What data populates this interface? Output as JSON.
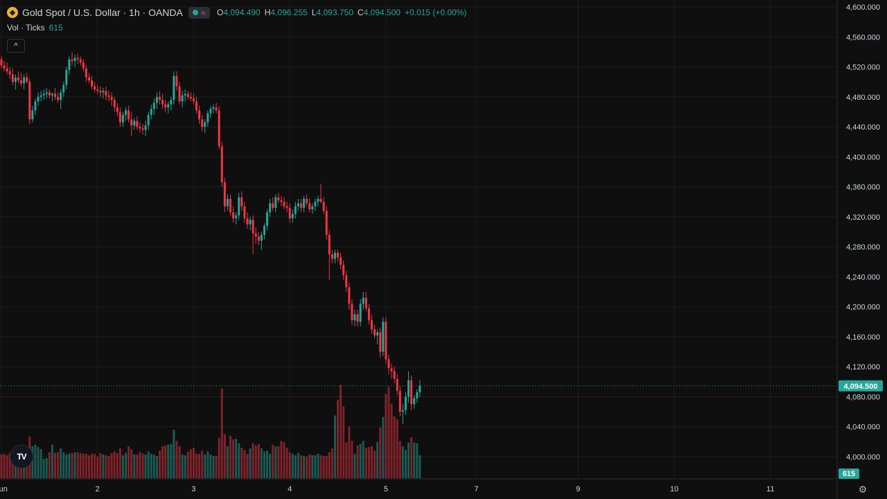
{
  "header": {
    "title": "Gold Spot / U.S. Dollar · 1h · OANDA",
    "o_label": "O",
    "o_value": "4,094.490",
    "h_label": "H",
    "h_value": "4,096.255",
    "l_label": "L",
    "l_value": "4,093.750",
    "c_label": "C",
    "c_value": "4,094.500",
    "change": "+0.015 (+0.00%)"
  },
  "volume_legend": {
    "label": "Vol · Ticks",
    "value": "615"
  },
  "colors": {
    "up": "#26a69a",
    "down": "#f23645",
    "background": "#0f0f0f",
    "grid": "#1e1e1e",
    "text": "#d1d4dc"
  },
  "icons": {
    "symbol": "gold-coin-icon",
    "collapse": "chevron-up-icon",
    "brand": "tradingview-logo-icon",
    "settings": "gear-icon"
  },
  "chart_data": {
    "type": "candlestick",
    "interval": "1h",
    "price_axis": {
      "range": [
        3980,
        4605
      ],
      "ticks": [
        4000,
        4040,
        4080,
        4120,
        4160,
        4200,
        4240,
        4280,
        4320,
        4360,
        4400,
        4440,
        4480,
        4520,
        4560,
        4600
      ],
      "tick_labels": [
        "4,000.000",
        "4,040.000",
        "4,080.000",
        "4,120.000",
        "4,160.000",
        "4,200.000",
        "4,240.000",
        "4,280.000",
        "4,320.000",
        "4,360.000",
        "4,400.000",
        "4,440.000",
        "4,480.000",
        "4,520.000",
        "4,560.000",
        "4,600.000"
      ]
    },
    "time_axis": {
      "labels": [
        "Jun",
        "2",
        "3",
        "4",
        "5",
        "7",
        "9",
        "10",
        "11"
      ],
      "label_index": [
        0,
        34,
        68,
        102,
        136,
        168,
        204,
        238,
        272
      ]
    },
    "last_price": 4094.5,
    "last_price_label": "4,094.500",
    "last_volume_label": "615",
    "candles": [
      [
        4530,
        4534,
        4518,
        4522
      ],
      [
        4522,
        4528,
        4514,
        4518
      ],
      [
        4518,
        4526,
        4510,
        4514
      ],
      [
        4514,
        4520,
        4504,
        4510
      ],
      [
        4510,
        4518,
        4496,
        4500
      ],
      [
        4500,
        4510,
        4490,
        4506
      ],
      [
        4506,
        4514,
        4498,
        4502
      ],
      [
        4502,
        4512,
        4494,
        4498
      ],
      [
        4498,
        4510,
        4490,
        4506
      ],
      [
        4506,
        4512,
        4498,
        4500
      ],
      [
        4500,
        4504,
        4444,
        4450
      ],
      [
        4450,
        4468,
        4446,
        4462
      ],
      [
        4462,
        4478,
        4456,
        4474
      ],
      [
        4474,
        4486,
        4468,
        4480
      ],
      [
        4480,
        4488,
        4474,
        4482
      ],
      [
        4482,
        4490,
        4476,
        4484
      ],
      [
        4484,
        4492,
        4478,
        4486
      ],
      [
        4486,
        4490,
        4478,
        4482
      ],
      [
        4482,
        4486,
        4474,
        4484
      ],
      [
        4484,
        4492,
        4476,
        4480
      ],
      [
        4480,
        4486,
        4472,
        4476
      ],
      [
        4476,
        4490,
        4464,
        4486
      ],
      [
        4486,
        4500,
        4480,
        4496
      ],
      [
        4496,
        4520,
        4490,
        4516
      ],
      [
        4516,
        4534,
        4510,
        4530
      ],
      [
        4530,
        4540,
        4522,
        4528
      ],
      [
        4528,
        4536,
        4520,
        4532
      ],
      [
        4532,
        4538,
        4524,
        4530
      ],
      [
        4530,
        4534,
        4522,
        4526
      ],
      [
        4526,
        4530,
        4514,
        4518
      ],
      [
        4518,
        4522,
        4500,
        4506
      ],
      [
        4506,
        4512,
        4498,
        4502
      ],
      [
        4502,
        4508,
        4490,
        4494
      ],
      [
        4494,
        4500,
        4486,
        4490
      ],
      [
        4490,
        4496,
        4484,
        4488
      ],
      [
        4488,
        4494,
        4480,
        4486
      ],
      [
        4486,
        4492,
        4478,
        4488
      ],
      [
        4488,
        4494,
        4476,
        4482
      ],
      [
        4482,
        4488,
        4474,
        4480
      ],
      [
        4480,
        4486,
        4468,
        4476
      ],
      [
        4476,
        4480,
        4460,
        4466
      ],
      [
        4466,
        4472,
        4454,
        4460
      ],
      [
        4460,
        4466,
        4440,
        4446
      ],
      [
        4446,
        4460,
        4440,
        4456
      ],
      [
        4456,
        4466,
        4448,
        4462
      ],
      [
        4462,
        4468,
        4446,
        4450
      ],
      [
        4450,
        4460,
        4428,
        4442
      ],
      [
        4442,
        4452,
        4436,
        4448
      ],
      [
        4448,
        4454,
        4436,
        4440
      ],
      [
        4440,
        4446,
        4432,
        4438
      ],
      [
        4438,
        4444,
        4430,
        4436
      ],
      [
        4436,
        4448,
        4428,
        4442
      ],
      [
        4442,
        4460,
        4436,
        4456
      ],
      [
        4456,
        4470,
        4450,
        4464
      ],
      [
        4464,
        4478,
        4456,
        4472
      ],
      [
        4472,
        4486,
        4464,
        4480
      ],
      [
        4480,
        4488,
        4470,
        4476
      ],
      [
        4476,
        4484,
        4464,
        4470
      ],
      [
        4470,
        4476,
        4460,
        4466
      ],
      [
        4466,
        4474,
        4458,
        4470
      ],
      [
        4470,
        4480,
        4462,
        4476
      ],
      [
        4476,
        4514,
        4470,
        4508
      ],
      [
        4508,
        4514,
        4488,
        4494
      ],
      [
        4494,
        4500,
        4470,
        4474
      ],
      [
        4474,
        4488,
        4466,
        4482
      ],
      [
        4482,
        4490,
        4474,
        4484
      ],
      [
        4484,
        4488,
        4476,
        4480
      ],
      [
        4480,
        4486,
        4474,
        4478
      ],
      [
        4478,
        4484,
        4470,
        4474
      ],
      [
        4474,
        4480,
        4458,
        4462
      ],
      [
        4462,
        4468,
        4444,
        4450
      ],
      [
        4450,
        4456,
        4434,
        4440
      ],
      [
        4440,
        4450,
        4432,
        4446
      ],
      [
        4446,
        4462,
        4440,
        4458
      ],
      [
        4458,
        4468,
        4452,
        4464
      ],
      [
        4464,
        4470,
        4458,
        4466
      ],
      [
        4466,
        4472,
        4458,
        4462
      ],
      [
        4462,
        4468,
        4410,
        4414
      ],
      [
        4414,
        4420,
        4360,
        4366
      ],
      [
        4366,
        4372,
        4326,
        4334
      ],
      [
        4334,
        4350,
        4328,
        4344
      ],
      [
        4344,
        4350,
        4322,
        4326
      ],
      [
        4326,
        4334,
        4312,
        4318
      ],
      [
        4318,
        4326,
        4310,
        4322
      ],
      [
        4322,
        4352,
        4316,
        4346
      ],
      [
        4346,
        4354,
        4328,
        4334
      ],
      [
        4334,
        4340,
        4312,
        4318
      ],
      [
        4318,
        4326,
        4304,
        4310
      ],
      [
        4310,
        4320,
        4302,
        4316
      ],
      [
        4316,
        4322,
        4270,
        4298
      ],
      [
        4298,
        4306,
        4284,
        4294
      ],
      [
        4294,
        4300,
        4282,
        4288
      ],
      [
        4288,
        4300,
        4276,
        4296
      ],
      [
        4296,
        4312,
        4290,
        4308
      ],
      [
        4308,
        4330,
        4302,
        4326
      ],
      [
        4326,
        4344,
        4320,
        4338
      ],
      [
        4338,
        4346,
        4328,
        4332
      ],
      [
        4332,
        4350,
        4326,
        4346
      ],
      [
        4346,
        4352,
        4338,
        4342
      ],
      [
        4342,
        4348,
        4334,
        4340
      ],
      [
        4340,
        4346,
        4330,
        4334
      ],
      [
        4334,
        4340,
        4326,
        4332
      ],
      [
        4332,
        4338,
        4312,
        4318
      ],
      [
        4318,
        4330,
        4312,
        4324
      ],
      [
        4324,
        4340,
        4318,
        4334
      ],
      [
        4334,
        4344,
        4328,
        4338
      ],
      [
        4338,
        4344,
        4326,
        4332
      ],
      [
        4332,
        4348,
        4326,
        4344
      ],
      [
        4344,
        4350,
        4334,
        4338
      ],
      [
        4338,
        4344,
        4326,
        4330
      ],
      [
        4330,
        4338,
        4324,
        4334
      ],
      [
        4334,
        4344,
        4328,
        4340
      ],
      [
        4340,
        4348,
        4334,
        4344
      ],
      [
        4344,
        4364,
        4338,
        4340
      ],
      [
        4340,
        4346,
        4324,
        4328
      ],
      [
        4328,
        4334,
        4290,
        4296
      ],
      [
        4296,
        4302,
        4236,
        4270
      ],
      [
        4270,
        4276,
        4258,
        4264
      ],
      [
        4264,
        4276,
        4258,
        4272
      ],
      [
        4272,
        4276,
        4260,
        4266
      ],
      [
        4266,
        4272,
        4250,
        4256
      ],
      [
        4256,
        4262,
        4236,
        4242
      ],
      [
        4242,
        4248,
        4220,
        4226
      ],
      [
        4226,
        4232,
        4196,
        4204
      ],
      [
        4204,
        4210,
        4176,
        4182
      ],
      [
        4182,
        4196,
        4174,
        4190
      ],
      [
        4190,
        4196,
        4174,
        4180
      ],
      [
        4180,
        4210,
        4174,
        4204
      ],
      [
        4204,
        4220,
        4196,
        4212
      ],
      [
        4212,
        4220,
        4194,
        4198
      ],
      [
        4198,
        4204,
        4176,
        4182
      ],
      [
        4182,
        4190,
        4164,
        4170
      ],
      [
        4170,
        4176,
        4158,
        4162
      ],
      [
        4162,
        4170,
        4150,
        4166
      ],
      [
        4166,
        4172,
        4132,
        4140
      ],
      [
        4140,
        4186,
        4134,
        4180
      ],
      [
        4180,
        4186,
        4124,
        4130
      ],
      [
        4130,
        4136,
        4110,
        4118
      ],
      [
        4118,
        4124,
        4104,
        4114
      ],
      [
        4114,
        4120,
        4098,
        4104
      ],
      [
        4104,
        4110,
        4082,
        4088
      ],
      [
        4088,
        4094,
        4054,
        4060
      ],
      [
        4060,
        4070,
        4044,
        4062
      ],
      [
        4062,
        4086,
        4056,
        4080
      ],
      [
        4080,
        4114,
        4072,
        4102
      ],
      [
        4102,
        4108,
        4062,
        4070
      ],
      [
        4070,
        4082,
        4064,
        4078
      ],
      [
        4078,
        4090,
        4072,
        4086
      ],
      [
        4086,
        4102,
        4080,
        4094.49
      ]
    ],
    "volumes": [
      4003,
      4004,
      4002,
      4005,
      4005,
      4006,
      4003,
      4005,
      4003,
      4004,
      4027,
      4014,
      4016,
      4013,
      4010,
      3997,
      3998,
      4006,
      4016,
      4005,
      4006,
      4011,
      4006,
      4003,
      4004,
      4005,
      4006,
      4006,
      4005,
      4004,
      4004,
      4002,
      4004,
      4004,
      4000,
      4005,
      4003,
      4002,
      4001,
      4005,
      4007,
      4005,
      4011,
      4002,
      4005,
      4014,
      4010,
      4003,
      4003,
      4006,
      4004,
      4003,
      4007,
      4004,
      4003,
      4001,
      4008,
      4014,
      4015,
      4016,
      4017,
      4036,
      4021,
      4014,
      4003,
      4002,
      4007,
      4010,
      4012,
      4004,
      4004,
      4008,
      4003,
      4007,
      4003,
      4001,
      4001,
      4025,
      4091,
      4030,
      4014,
      4028,
      4023,
      4024,
      4018,
      4012,
      4009,
      4004,
      4011,
      4018,
      4015,
      4017,
      4011,
      4007,
      4008,
      4004,
      4016,
      4014,
      4014,
      4021,
      4019,
      4012,
      4006,
      4004,
      4002,
      4005,
      4002,
      4001,
      4000,
      4003,
      4002,
      4002,
      4004,
      4002,
      4001,
      4001,
      4006,
      4011,
      4055,
      4076,
      4096,
      4067,
      4019,
      4040,
      4021,
      4004,
      4015,
      4017,
      4021,
      4012,
      4013,
      4014,
      4008,
      4020,
      4039,
      4053,
      4084,
      4093,
      4071,
      4054,
      4050,
      4021,
      4014,
      4009,
      4019,
      4026,
      4019,
      4018,
      4002
    ]
  }
}
